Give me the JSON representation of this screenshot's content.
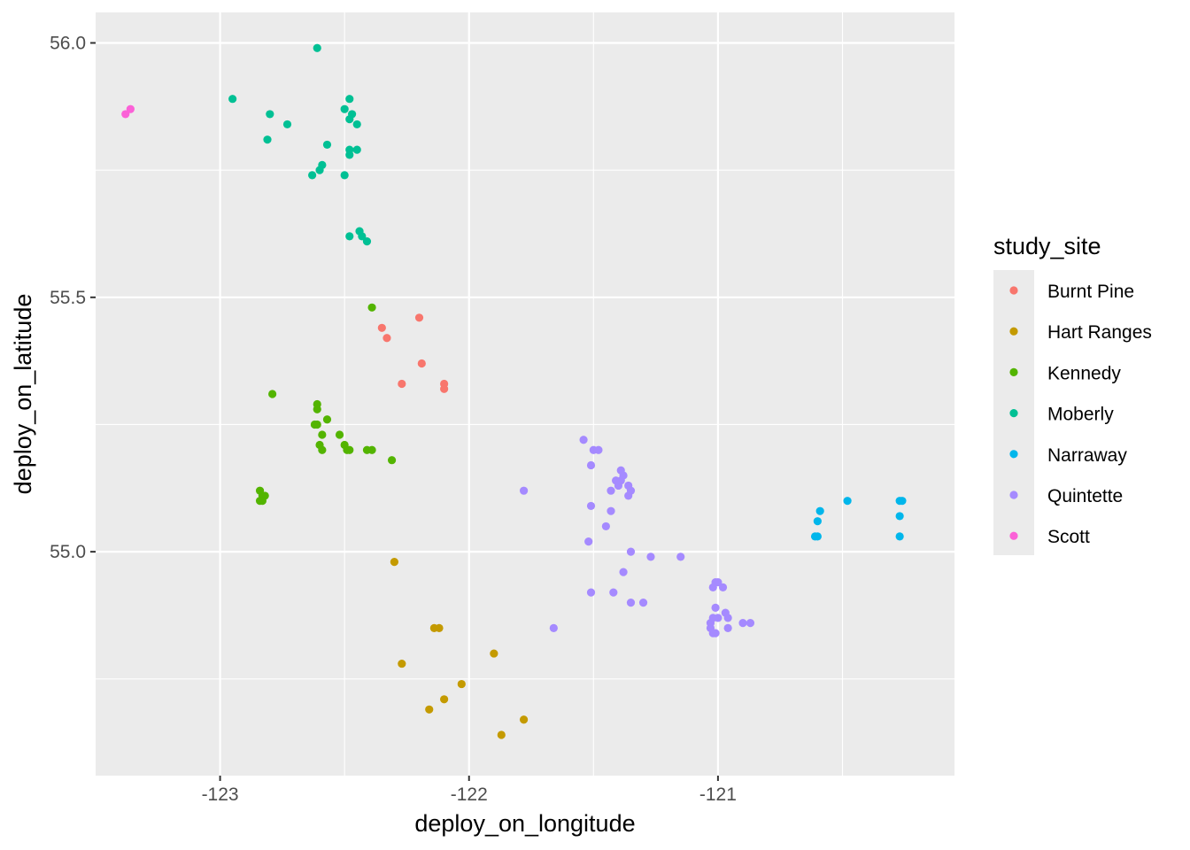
{
  "chart_data": {
    "type": "scatter",
    "xlabel": "deploy_on_longitude",
    "ylabel": "deploy_on_latitude",
    "xlim": [
      -123.5,
      -120.05
    ],
    "ylim": [
      54.56,
      56.06
    ],
    "x_ticks": [
      -123,
      -122,
      -121
    ],
    "x_tick_labels": [
      "-123",
      "-122",
      "-121"
    ],
    "y_ticks": [
      55.0,
      55.5,
      56.0
    ],
    "y_tick_labels": [
      "55.0",
      "55.5",
      "56.0"
    ],
    "grid": true,
    "legend": {
      "title": "study_site",
      "placement": "right"
    },
    "series": [
      {
        "name": "Burnt Pine",
        "color": "#F8766D",
        "points": [
          [
            -122.35,
            55.44
          ],
          [
            -122.33,
            55.42
          ],
          [
            -122.2,
            55.46
          ],
          [
            -122.19,
            55.37
          ],
          [
            -122.27,
            55.33
          ],
          [
            -122.1,
            55.33
          ],
          [
            -122.1,
            55.32
          ]
        ]
      },
      {
        "name": "Hart Ranges",
        "color": "#C49A00",
        "points": [
          [
            -122.3,
            54.98
          ],
          [
            -122.14,
            54.85
          ],
          [
            -122.12,
            54.85
          ],
          [
            -122.27,
            54.78
          ],
          [
            -121.9,
            54.8
          ],
          [
            -122.03,
            54.74
          ],
          [
            -122.1,
            54.71
          ],
          [
            -122.16,
            54.69
          ],
          [
            -121.78,
            54.67
          ],
          [
            -121.87,
            54.64
          ]
        ]
      },
      {
        "name": "Kennedy",
        "color": "#53B400",
        "points": [
          [
            -122.39,
            55.48
          ],
          [
            -122.79,
            55.31
          ],
          [
            -122.61,
            55.29
          ],
          [
            -122.61,
            55.28
          ],
          [
            -122.57,
            55.26
          ],
          [
            -122.62,
            55.25
          ],
          [
            -122.61,
            55.25
          ],
          [
            -122.52,
            55.23
          ],
          [
            -122.59,
            55.23
          ],
          [
            -122.5,
            55.21
          ],
          [
            -122.49,
            55.2
          ],
          [
            -122.48,
            55.2
          ],
          [
            -122.59,
            55.2
          ],
          [
            -122.6,
            55.21
          ],
          [
            -122.41,
            55.2
          ],
          [
            -122.39,
            55.2
          ],
          [
            -122.31,
            55.18
          ],
          [
            -122.84,
            55.12
          ],
          [
            -122.83,
            55.11
          ],
          [
            -122.82,
            55.11
          ],
          [
            -122.83,
            55.1
          ],
          [
            -122.84,
            55.1
          ]
        ]
      },
      {
        "name": "Moberly",
        "color": "#00C094",
        "points": [
          [
            -122.61,
            55.99
          ],
          [
            -122.95,
            55.89
          ],
          [
            -122.48,
            55.89
          ],
          [
            -122.8,
            55.86
          ],
          [
            -122.73,
            55.84
          ],
          [
            -122.5,
            55.87
          ],
          [
            -122.47,
            55.86
          ],
          [
            -122.48,
            55.85
          ],
          [
            -122.45,
            55.84
          ],
          [
            -122.81,
            55.81
          ],
          [
            -122.57,
            55.8
          ],
          [
            -122.48,
            55.79
          ],
          [
            -122.45,
            55.79
          ],
          [
            -122.48,
            55.78
          ],
          [
            -122.59,
            55.76
          ],
          [
            -122.6,
            55.75
          ],
          [
            -122.63,
            55.74
          ],
          [
            -122.5,
            55.74
          ],
          [
            -122.44,
            55.63
          ],
          [
            -122.43,
            55.62
          ],
          [
            -122.48,
            55.62
          ],
          [
            -122.41,
            55.61
          ]
        ]
      },
      {
        "name": "Narraway",
        "color": "#00B6EB",
        "points": [
          [
            -120.48,
            55.1
          ],
          [
            -120.59,
            55.08
          ],
          [
            -120.27,
            55.1
          ],
          [
            -120.26,
            55.1
          ],
          [
            -120.27,
            55.07
          ],
          [
            -120.6,
            55.06
          ],
          [
            -120.61,
            55.03
          ],
          [
            -120.6,
            55.03
          ],
          [
            -120.27,
            55.03
          ]
        ]
      },
      {
        "name": "Quintette",
        "color": "#A58AFF",
        "points": [
          [
            -121.54,
            55.22
          ],
          [
            -121.5,
            55.2
          ],
          [
            -121.48,
            55.2
          ],
          [
            -121.51,
            55.17
          ],
          [
            -121.39,
            55.16
          ],
          [
            -121.38,
            55.15
          ],
          [
            -121.41,
            55.14
          ],
          [
            -121.4,
            55.13
          ],
          [
            -121.39,
            55.14
          ],
          [
            -121.36,
            55.13
          ],
          [
            -121.43,
            55.12
          ],
          [
            -121.35,
            55.12
          ],
          [
            -121.36,
            55.11
          ],
          [
            -121.78,
            55.12
          ],
          [
            -121.51,
            55.09
          ],
          [
            -121.43,
            55.08
          ],
          [
            -121.45,
            55.05
          ],
          [
            -121.52,
            55.02
          ],
          [
            -121.35,
            55.0
          ],
          [
            -121.27,
            54.99
          ],
          [
            -121.15,
            54.99
          ],
          [
            -121.38,
            54.96
          ],
          [
            -121.01,
            54.94
          ],
          [
            -121.0,
            54.94
          ],
          [
            -121.02,
            54.93
          ],
          [
            -120.98,
            54.93
          ],
          [
            -121.51,
            54.92
          ],
          [
            -121.42,
            54.92
          ],
          [
            -121.35,
            54.9
          ],
          [
            -121.3,
            54.9
          ],
          [
            -121.01,
            54.89
          ],
          [
            -121.66,
            54.85
          ],
          [
            -120.97,
            54.88
          ],
          [
            -120.96,
            54.87
          ],
          [
            -121.0,
            54.87
          ],
          [
            -121.02,
            54.87
          ],
          [
            -120.9,
            54.86
          ],
          [
            -120.87,
            54.86
          ],
          [
            -121.03,
            54.86
          ],
          [
            -120.96,
            54.85
          ],
          [
            -121.03,
            54.85
          ],
          [
            -121.02,
            54.84
          ],
          [
            -121.01,
            54.84
          ]
        ]
      },
      {
        "name": "Scott",
        "color": "#FB61D7",
        "points": [
          [
            -123.36,
            55.87
          ],
          [
            -123.38,
            55.86
          ]
        ]
      }
    ]
  }
}
